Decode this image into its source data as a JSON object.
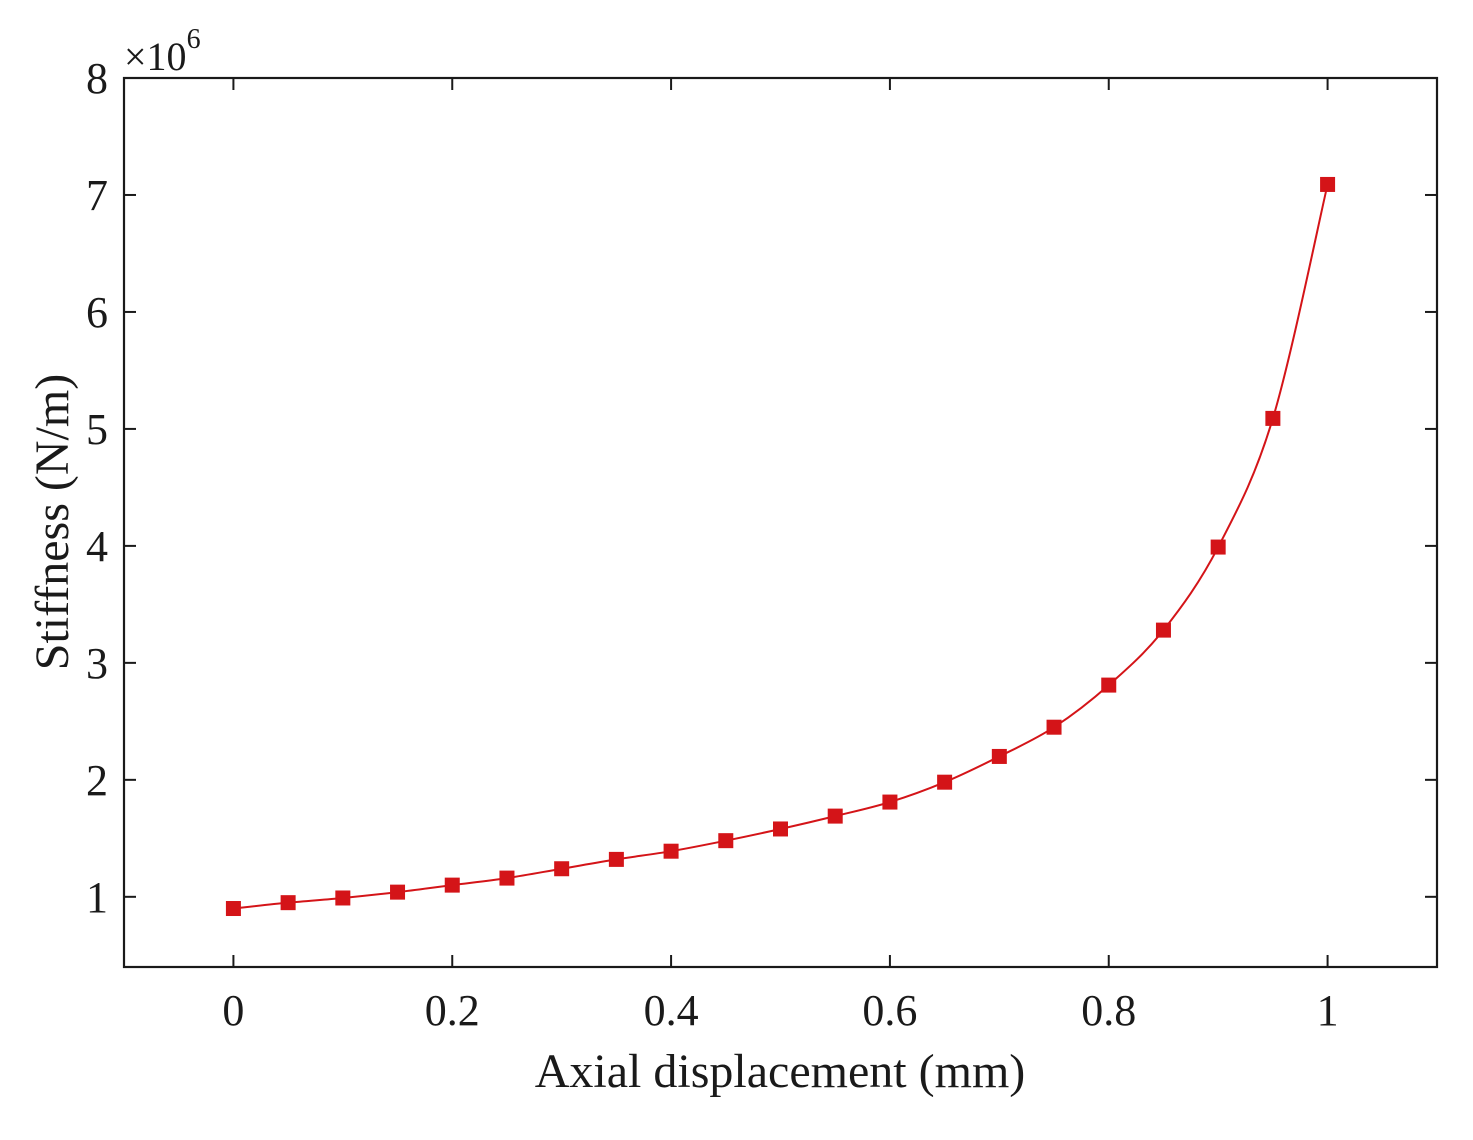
{
  "chart_data": {
    "type": "line",
    "title": "",
    "xlabel": "Axial displacement (mm)",
    "ylabel": "Stiffness (N/m)",
    "y_multiplier_label": {
      "base": "×10",
      "exponent": "6"
    },
    "xlim": [
      -0.1,
      1.1
    ],
    "ylim": [
      0.4,
      8
    ],
    "xticks": [
      0,
      0.2,
      0.4,
      0.6,
      0.8,
      1
    ],
    "xtick_labels": [
      "0",
      "0.2",
      "0.4",
      "0.6",
      "0.8",
      "1"
    ],
    "yticks": [
      1,
      2,
      3,
      4,
      5,
      6,
      7,
      8
    ],
    "ytick_labels": [
      "1",
      "2",
      "3",
      "4",
      "5",
      "6",
      "7",
      "8"
    ],
    "grid": false,
    "series": [
      {
        "color": "#d41418",
        "marker": "square",
        "x": [
          0,
          0.05,
          0.1,
          0.15,
          0.2,
          0.25,
          0.3,
          0.35,
          0.4,
          0.45,
          0.5,
          0.55,
          0.6,
          0.65,
          0.7,
          0.75,
          0.8,
          0.85,
          0.9,
          0.95,
          1.0
        ],
        "y": [
          0.9,
          0.95,
          0.99,
          1.04,
          1.1,
          1.16,
          1.24,
          1.32,
          1.39,
          1.48,
          1.58,
          1.69,
          1.81,
          1.98,
          2.2,
          2.45,
          2.81,
          3.28,
          3.99,
          5.09,
          7.09
        ]
      }
    ]
  }
}
